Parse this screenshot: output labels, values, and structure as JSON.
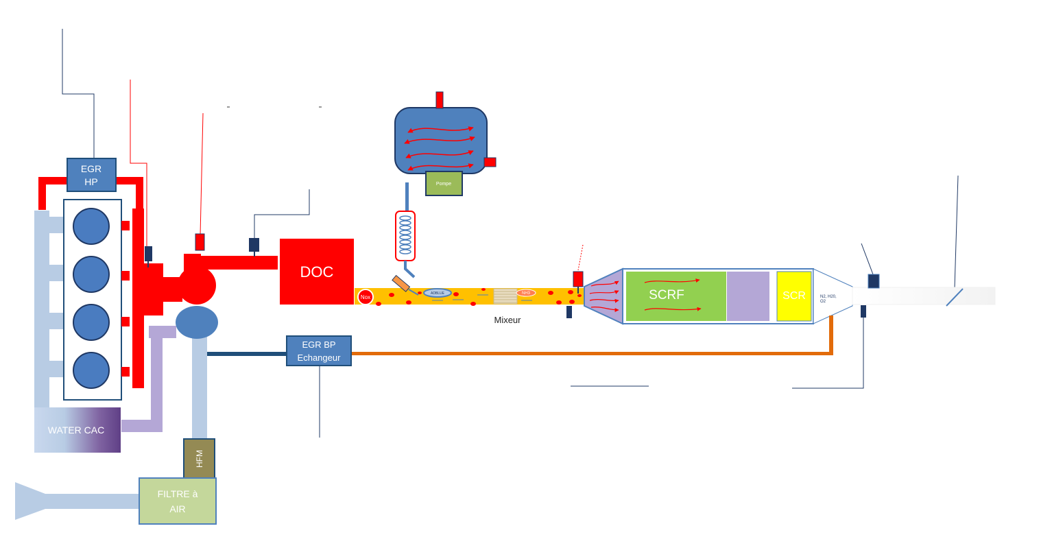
{
  "labels": {
    "egr_hp_line1": "EGR",
    "egr_hp_line2": "HP",
    "doc": "DOC",
    "nox": "Nox",
    "mixer_tag": "ADBLUE",
    "nh3": "NH3",
    "mixeur": "Mixeur",
    "pompe": "Pompe",
    "scrf": "SCRF",
    "scr": "SCR",
    "outlet_gases_line1": "N2, H20,",
    "outlet_gases_line2": "O2",
    "egr_bp_line1": "EGR BP",
    "egr_bp_line2": "Echangeur",
    "water_cac": "WATER CAC",
    "hfm": "HFM",
    "filtre_line1": "FILTRE à",
    "filtre_line2": "AIR"
  },
  "colors": {
    "exhaust_red": "#ff0000",
    "cylinder_blue": "#4a7cc0",
    "box_blue": "#4f81bd",
    "dark_blue": "#1f3864",
    "intake_light_blue": "#b8cce4",
    "scrf_green": "#92d050",
    "scr_yellow": "#ffff00",
    "filter_green": "#c4d79b",
    "hfm_olive": "#948a54",
    "purple": "#b4a7d6",
    "orange_egr": "#e26b0a",
    "exhaust_stream": "#ffc000"
  }
}
